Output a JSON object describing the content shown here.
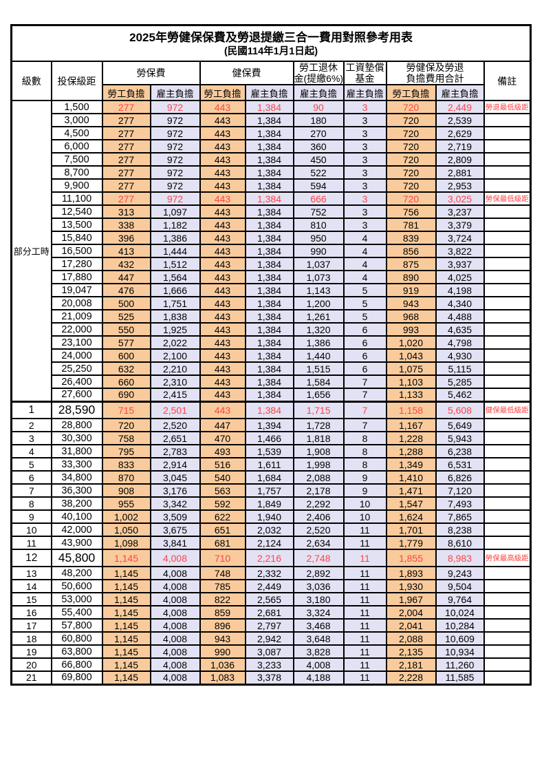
{
  "title": "2025年勞健保保費及勞退提繳三合一費用對照參考用表",
  "subtitle": "(民國114年1月1日起)",
  "colors": {
    "employee_share_bg": "#F9CB9C",
    "employer_share_bg": "#E3E2F4",
    "highlight_text": "#FF4343",
    "grid_border": "#000000"
  },
  "header": {
    "level": "級數",
    "bracket": "投保級距",
    "labor_insurance": "勞保費",
    "health_insurance": "健保費",
    "pension_l1": "勞工退休",
    "pension_l2": "金(提繳6%)",
    "wage_fund_l1": "工資墊償",
    "wage_fund_l2": "基金",
    "total_l1": "勞健保及勞退",
    "total_l2": "負擔費用合計",
    "remark": "備註",
    "employee_share": "勞工負擔",
    "employer_share": "雇主負擔"
  },
  "part_time": {
    "label": "部分工時",
    "rowspan": 23
  },
  "rows": [
    {
      "level": "",
      "bracket": "1,500",
      "li_emp": "277",
      "li_er": "972",
      "hi_emp": "443",
      "hi_er": "1,384",
      "pension": "90",
      "wage_fund": "3",
      "tot_emp": "720",
      "tot_er": "2,449",
      "remark": "勞退最低級距",
      "red": true
    },
    {
      "level": "",
      "bracket": "3,000",
      "li_emp": "277",
      "li_er": "972",
      "hi_emp": "443",
      "hi_er": "1,384",
      "pension": "180",
      "wage_fund": "3",
      "tot_emp": "720",
      "tot_er": "2,539",
      "remark": ""
    },
    {
      "level": "",
      "bracket": "4,500",
      "li_emp": "277",
      "li_er": "972",
      "hi_emp": "443",
      "hi_er": "1,384",
      "pension": "270",
      "wage_fund": "3",
      "tot_emp": "720",
      "tot_er": "2,629",
      "remark": ""
    },
    {
      "level": "",
      "bracket": "6,000",
      "li_emp": "277",
      "li_er": "972",
      "hi_emp": "443",
      "hi_er": "1,384",
      "pension": "360",
      "wage_fund": "3",
      "tot_emp": "720",
      "tot_er": "2,719",
      "remark": ""
    },
    {
      "level": "",
      "bracket": "7,500",
      "li_emp": "277",
      "li_er": "972",
      "hi_emp": "443",
      "hi_er": "1,384",
      "pension": "450",
      "wage_fund": "3",
      "tot_emp": "720",
      "tot_er": "2,809",
      "remark": ""
    },
    {
      "level": "",
      "bracket": "8,700",
      "li_emp": "277",
      "li_er": "972",
      "hi_emp": "443",
      "hi_er": "1,384",
      "pension": "522",
      "wage_fund": "3",
      "tot_emp": "720",
      "tot_er": "2,881",
      "remark": ""
    },
    {
      "level": "",
      "bracket": "9,900",
      "li_emp": "277",
      "li_er": "972",
      "hi_emp": "443",
      "hi_er": "1,384",
      "pension": "594",
      "wage_fund": "3",
      "tot_emp": "720",
      "tot_er": "2,953",
      "remark": ""
    },
    {
      "level": "",
      "bracket": "11,100",
      "li_emp": "277",
      "li_er": "972",
      "hi_emp": "443",
      "hi_er": "1,384",
      "pension": "666",
      "wage_fund": "3",
      "tot_emp": "720",
      "tot_er": "3,025",
      "remark": "勞保最低級距",
      "red": true
    },
    {
      "level": "",
      "bracket": "12,540",
      "li_emp": "313",
      "li_er": "1,097",
      "hi_emp": "443",
      "hi_er": "1,384",
      "pension": "752",
      "wage_fund": "3",
      "tot_emp": "756",
      "tot_er": "3,237",
      "remark": ""
    },
    {
      "level": "",
      "bracket": "13,500",
      "li_emp": "338",
      "li_er": "1,182",
      "hi_emp": "443",
      "hi_er": "1,384",
      "pension": "810",
      "wage_fund": "3",
      "tot_emp": "781",
      "tot_er": "3,379",
      "remark": ""
    },
    {
      "level": "",
      "bracket": "15,840",
      "li_emp": "396",
      "li_er": "1,386",
      "hi_emp": "443",
      "hi_er": "1,384",
      "pension": "950",
      "wage_fund": "4",
      "tot_emp": "839",
      "tot_er": "3,724",
      "remark": ""
    },
    {
      "level": "",
      "bracket": "16,500",
      "li_emp": "413",
      "li_er": "1,444",
      "hi_emp": "443",
      "hi_er": "1,384",
      "pension": "990",
      "wage_fund": "4",
      "tot_emp": "856",
      "tot_er": "3,822",
      "remark": ""
    },
    {
      "level": "",
      "bracket": "17,280",
      "li_emp": "432",
      "li_er": "1,512",
      "hi_emp": "443",
      "hi_er": "1,384",
      "pension": "1,037",
      "wage_fund": "4",
      "tot_emp": "875",
      "tot_er": "3,937",
      "remark": ""
    },
    {
      "level": "",
      "bracket": "17,880",
      "li_emp": "447",
      "li_er": "1,564",
      "hi_emp": "443",
      "hi_er": "1,384",
      "pension": "1,073",
      "wage_fund": "4",
      "tot_emp": "890",
      "tot_er": "4,025",
      "remark": ""
    },
    {
      "level": "",
      "bracket": "19,047",
      "li_emp": "476",
      "li_er": "1,666",
      "hi_emp": "443",
      "hi_er": "1,384",
      "pension": "1,143",
      "wage_fund": "5",
      "tot_emp": "919",
      "tot_er": "4,198",
      "remark": ""
    },
    {
      "level": "",
      "bracket": "20,008",
      "li_emp": "500",
      "li_er": "1,751",
      "hi_emp": "443",
      "hi_er": "1,384",
      "pension": "1,200",
      "wage_fund": "5",
      "tot_emp": "943",
      "tot_er": "4,340",
      "remark": ""
    },
    {
      "level": "",
      "bracket": "21,009",
      "li_emp": "525",
      "li_er": "1,838",
      "hi_emp": "443",
      "hi_er": "1,384",
      "pension": "1,261",
      "wage_fund": "5",
      "tot_emp": "968",
      "tot_er": "4,488",
      "remark": ""
    },
    {
      "level": "",
      "bracket": "22,000",
      "li_emp": "550",
      "li_er": "1,925",
      "hi_emp": "443",
      "hi_er": "1,384",
      "pension": "1,320",
      "wage_fund": "6",
      "tot_emp": "993",
      "tot_er": "4,635",
      "remark": ""
    },
    {
      "level": "",
      "bracket": "23,100",
      "li_emp": "577",
      "li_er": "2,022",
      "hi_emp": "443",
      "hi_er": "1,384",
      "pension": "1,386",
      "wage_fund": "6",
      "tot_emp": "1,020",
      "tot_er": "4,798",
      "remark": ""
    },
    {
      "level": "",
      "bracket": "24,000",
      "li_emp": "600",
      "li_er": "2,100",
      "hi_emp": "443",
      "hi_er": "1,384",
      "pension": "1,440",
      "wage_fund": "6",
      "tot_emp": "1,043",
      "tot_er": "4,930",
      "remark": ""
    },
    {
      "level": "",
      "bracket": "25,250",
      "li_emp": "632",
      "li_er": "2,210",
      "hi_emp": "443",
      "hi_er": "1,384",
      "pension": "1,515",
      "wage_fund": "6",
      "tot_emp": "1,075",
      "tot_er": "5,115",
      "remark": ""
    },
    {
      "level": "",
      "bracket": "26,400",
      "li_emp": "660",
      "li_er": "2,310",
      "hi_emp": "443",
      "hi_er": "1,384",
      "pension": "1,584",
      "wage_fund": "7",
      "tot_emp": "1,103",
      "tot_er": "5,285",
      "remark": ""
    },
    {
      "level": "",
      "bracket": "27,600",
      "li_emp": "690",
      "li_er": "2,415",
      "hi_emp": "443",
      "hi_er": "1,384",
      "pension": "1,656",
      "wage_fund": "7",
      "tot_emp": "1,133",
      "tot_er": "5,462",
      "remark": ""
    },
    {
      "level": "1",
      "bracket": "28,590",
      "li_emp": "715",
      "li_er": "2,501",
      "hi_emp": "443",
      "hi_er": "1,384",
      "pension": "1,715",
      "wage_fund": "7",
      "tot_emp": "1,158",
      "tot_er": "5,608",
      "remark": "健保最低級距",
      "red": true,
      "big": true,
      "thick_top": true
    },
    {
      "level": "2",
      "bracket": "28,800",
      "li_emp": "720",
      "li_er": "2,520",
      "hi_emp": "447",
      "hi_er": "1,394",
      "pension": "1,728",
      "wage_fund": "7",
      "tot_emp": "1,167",
      "tot_er": "5,649",
      "remark": ""
    },
    {
      "level": "3",
      "bracket": "30,300",
      "li_emp": "758",
      "li_er": "2,651",
      "hi_emp": "470",
      "hi_er": "1,466",
      "pension": "1,818",
      "wage_fund": "8",
      "tot_emp": "1,228",
      "tot_er": "5,943",
      "remark": ""
    },
    {
      "level": "4",
      "bracket": "31,800",
      "li_emp": "795",
      "li_er": "2,783",
      "hi_emp": "493",
      "hi_er": "1,539",
      "pension": "1,908",
      "wage_fund": "8",
      "tot_emp": "1,288",
      "tot_er": "6,238",
      "remark": ""
    },
    {
      "level": "5",
      "bracket": "33,300",
      "li_emp": "833",
      "li_er": "2,914",
      "hi_emp": "516",
      "hi_er": "1,611",
      "pension": "1,998",
      "wage_fund": "8",
      "tot_emp": "1,349",
      "tot_er": "6,531",
      "remark": ""
    },
    {
      "level": "6",
      "bracket": "34,800",
      "li_emp": "870",
      "li_er": "3,045",
      "hi_emp": "540",
      "hi_er": "1,684",
      "pension": "2,088",
      "wage_fund": "9",
      "tot_emp": "1,410",
      "tot_er": "6,826",
      "remark": ""
    },
    {
      "level": "7",
      "bracket": "36,300",
      "li_emp": "908",
      "li_er": "3,176",
      "hi_emp": "563",
      "hi_er": "1,757",
      "pension": "2,178",
      "wage_fund": "9",
      "tot_emp": "1,471",
      "tot_er": "7,120",
      "remark": ""
    },
    {
      "level": "8",
      "bracket": "38,200",
      "li_emp": "955",
      "li_er": "3,342",
      "hi_emp": "592",
      "hi_er": "1,849",
      "pension": "2,292",
      "wage_fund": "10",
      "tot_emp": "1,547",
      "tot_er": "7,493",
      "remark": ""
    },
    {
      "level": "9",
      "bracket": "40,100",
      "li_emp": "1,002",
      "li_er": "3,509",
      "hi_emp": "622",
      "hi_er": "1,940",
      "pension": "2,406",
      "wage_fund": "10",
      "tot_emp": "1,624",
      "tot_er": "7,865",
      "remark": ""
    },
    {
      "level": "10",
      "bracket": "42,000",
      "li_emp": "1,050",
      "li_er": "3,675",
      "hi_emp": "651",
      "hi_er": "2,032",
      "pension": "2,520",
      "wage_fund": "11",
      "tot_emp": "1,701",
      "tot_er": "8,238",
      "remark": ""
    },
    {
      "level": "11",
      "bracket": "43,900",
      "li_emp": "1,098",
      "li_er": "3,841",
      "hi_emp": "681",
      "hi_er": "2,124",
      "pension": "2,634",
      "wage_fund": "11",
      "tot_emp": "1,779",
      "tot_er": "8,610",
      "remark": ""
    },
    {
      "level": "12",
      "bracket": "45,800",
      "li_emp": "1,145",
      "li_er": "4,008",
      "hi_emp": "710",
      "hi_er": "2,216",
      "pension": "2,748",
      "wage_fund": "11",
      "tot_emp": "1,855",
      "tot_er": "8,983",
      "remark": "勞保最高級距",
      "red": true,
      "big": true
    },
    {
      "level": "13",
      "bracket": "48,200",
      "li_emp": "1,145",
      "li_er": "4,008",
      "hi_emp": "748",
      "hi_er": "2,332",
      "pension": "2,892",
      "wage_fund": "11",
      "tot_emp": "1,893",
      "tot_er": "9,243",
      "remark": ""
    },
    {
      "level": "14",
      "bracket": "50,600",
      "li_emp": "1,145",
      "li_er": "4,008",
      "hi_emp": "785",
      "hi_er": "2,449",
      "pension": "3,036",
      "wage_fund": "11",
      "tot_emp": "1,930",
      "tot_er": "9,504",
      "remark": ""
    },
    {
      "level": "15",
      "bracket": "53,000",
      "li_emp": "1,145",
      "li_er": "4,008",
      "hi_emp": "822",
      "hi_er": "2,565",
      "pension": "3,180",
      "wage_fund": "11",
      "tot_emp": "1,967",
      "tot_er": "9,764",
      "remark": ""
    },
    {
      "level": "16",
      "bracket": "55,400",
      "li_emp": "1,145",
      "li_er": "4,008",
      "hi_emp": "859",
      "hi_er": "2,681",
      "pension": "3,324",
      "wage_fund": "11",
      "tot_emp": "2,004",
      "tot_er": "10,024",
      "remark": ""
    },
    {
      "level": "17",
      "bracket": "57,800",
      "li_emp": "1,145",
      "li_er": "4,008",
      "hi_emp": "896",
      "hi_er": "2,797",
      "pension": "3,468",
      "wage_fund": "11",
      "tot_emp": "2,041",
      "tot_er": "10,284",
      "remark": ""
    },
    {
      "level": "18",
      "bracket": "60,800",
      "li_emp": "1,145",
      "li_er": "4,008",
      "hi_emp": "943",
      "hi_er": "2,942",
      "pension": "3,648",
      "wage_fund": "11",
      "tot_emp": "2,088",
      "tot_er": "10,609",
      "remark": ""
    },
    {
      "level": "19",
      "bracket": "63,800",
      "li_emp": "1,145",
      "li_er": "4,008",
      "hi_emp": "990",
      "hi_er": "3,087",
      "pension": "3,828",
      "wage_fund": "11",
      "tot_emp": "2,135",
      "tot_er": "10,934",
      "remark": ""
    },
    {
      "level": "20",
      "bracket": "66,800",
      "li_emp": "1,145",
      "li_er": "4,008",
      "hi_emp": "1,036",
      "hi_er": "3,233",
      "pension": "4,008",
      "wage_fund": "11",
      "tot_emp": "2,181",
      "tot_er": "11,260",
      "remark": ""
    },
    {
      "level": "21",
      "bracket": "69,800",
      "li_emp": "1,145",
      "li_er": "4,008",
      "hi_emp": "1,083",
      "hi_er": "3,378",
      "pension": "4,188",
      "wage_fund": "11",
      "tot_emp": "2,228",
      "tot_er": "11,585",
      "remark": ""
    }
  ]
}
